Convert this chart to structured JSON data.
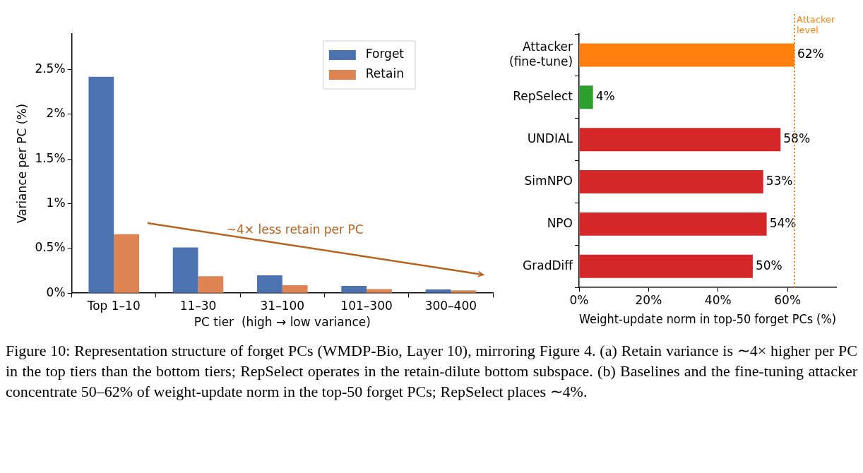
{
  "chart_data": [
    {
      "type": "bar",
      "xlabel": "PC tier  (high → low variance)",
      "ylabel": "Variance per PC (%)",
      "categories": [
        "Top 1–10",
        "11–30",
        "31–100",
        "101–300",
        "300–400"
      ],
      "series": [
        {
          "name": "Forget",
          "color": "#4c72b0",
          "values": [
            2.42,
            0.51,
            0.2,
            0.08,
            0.042
          ]
        },
        {
          "name": "Retain",
          "color": "#dd8452",
          "values": [
            0.66,
            0.19,
            0.088,
            0.046,
            0.032
          ]
        }
      ],
      "ylim": [
        0,
        2.9
      ],
      "yticks": [
        {
          "value": 0,
          "label": "0%"
        },
        {
          "value": 0.5,
          "label": "0.5%"
        },
        {
          "value": 1,
          "label": "1%"
        },
        {
          "value": 1.5,
          "label": "1.5%"
        },
        {
          "value": 2,
          "label": "2%"
        },
        {
          "value": 2.5,
          "label": "2.5%"
        }
      ],
      "grid": false,
      "legend": "top right",
      "annotations": [
        "~4× less retain per PC",
        "Figure 10: Representation structure of forget PCs (WMDP-Bio, Layer 10), mirroring Figure 4. (a) Retain variance is ∼4× higher per PC in the top tiers than the bottom tiers; RepSelect operates in the retain-dilute bottom subspace. (b) Baselines and the fine-tuning attacker concentrate 50–62% of weight-update norm in the top-50 forget PCs; RepSelect places ∼4%."
      ]
    },
    {
      "type": "bar",
      "orientation": "horizontal",
      "xlabel": "Weight-update norm in top-50 forget PCs (%)",
      "categories": [
        "Attacker\n(fine-tune)",
        "RepSelect",
        "UNDIAL",
        "SimNPO",
        "NPO",
        "GradDiff"
      ],
      "values": [
        62,
        4,
        58,
        53,
        54,
        50
      ],
      "colors": [
        "#ff7f0e",
        "#2ca02c",
        "#d62728",
        "#d62728",
        "#d62728",
        "#d62728"
      ],
      "value_labels": [
        "62%",
        "4%",
        "58%",
        "53%",
        "54%",
        "50%"
      ],
      "xlim": [
        0,
        74
      ],
      "xticks": [
        {
          "value": 0,
          "label": "0%"
        },
        {
          "value": 20,
          "label": "20%"
        },
        {
          "value": 40,
          "label": "40%"
        },
        {
          "value": 60,
          "label": "60%"
        }
      ],
      "grid": false,
      "legend": false,
      "ref_lines": [
        {
          "axis": "x",
          "value": 62,
          "label": "Attacker\nlevel",
          "color": "#ff7f0e",
          "line_style": "dotted"
        }
      ]
    }
  ]
}
